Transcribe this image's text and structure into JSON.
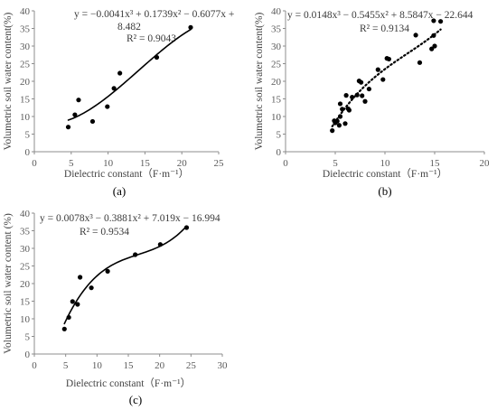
{
  "chart_data": [
    {
      "type": "scatter",
      "panel_label": "(a)",
      "xlabel": "Dielectric constant（F·m⁻¹）",
      "ylabel": "Volumetric soil water content(%)",
      "xlim": [
        0,
        25
      ],
      "ylim": [
        0,
        40
      ],
      "xticks": [
        0,
        5,
        10,
        15,
        20,
        25
      ],
      "yticks": [
        0,
        5,
        10,
        15,
        20,
        25,
        30,
        35,
        40
      ],
      "points": [
        [
          4.6,
          7.0
        ],
        [
          5.5,
          10.5
        ],
        [
          6.0,
          14.7
        ],
        [
          7.9,
          8.6
        ],
        [
          9.9,
          12.8
        ],
        [
          10.8,
          18.0
        ],
        [
          11.6,
          22.3
        ],
        [
          16.6,
          26.8
        ],
        [
          21.2,
          35.3
        ]
      ],
      "trendline": {
        "style": "solid",
        "coefficients": [
          -0.0041,
          0.1739,
          -0.6077,
          8.482
        ],
        "x_range": [
          4.6,
          21.2
        ]
      },
      "equation_line1": "y = −0.0041x³ + 0.1739x² − 0.6077x +",
      "equation_line2": "8.482",
      "r2_text": "R² = 0.9043",
      "grid": false
    },
    {
      "type": "scatter",
      "panel_label": "(b)",
      "xlabel": "Dielectric constant（F·m⁻¹）",
      "ylabel": "Volumetric soil water content(%)",
      "xlim": [
        0,
        20
      ],
      "ylim": [
        0,
        40
      ],
      "xticks": [
        0,
        5,
        10,
        15,
        20
      ],
      "yticks": [
        0,
        5,
        10,
        15,
        20,
        25,
        30,
        35,
        40
      ],
      "points": [
        [
          4.7,
          6.0
        ],
        [
          4.9,
          8.8
        ],
        [
          5.0,
          8.2
        ],
        [
          5.2,
          8.7
        ],
        [
          5.4,
          7.5
        ],
        [
          5.5,
          10.0
        ],
        [
          5.5,
          13.6
        ],
        [
          5.7,
          12.1
        ],
        [
          6.0,
          8.0
        ],
        [
          6.1,
          16.0
        ],
        [
          6.3,
          12.2
        ],
        [
          6.4,
          11.8
        ],
        [
          6.7,
          15.5
        ],
        [
          7.2,
          16.1
        ],
        [
          7.4,
          20.1
        ],
        [
          7.6,
          19.7
        ],
        [
          7.7,
          15.9
        ],
        [
          8.0,
          14.3
        ],
        [
          8.4,
          17.8
        ],
        [
          9.3,
          23.3
        ],
        [
          9.8,
          20.5
        ],
        [
          10.2,
          26.5
        ],
        [
          10.4,
          26.3
        ],
        [
          13.1,
          33.1
        ],
        [
          13.5,
          25.3
        ],
        [
          14.7,
          29.2
        ],
        [
          14.9,
          37.2
        ],
        [
          14.9,
          33.0
        ],
        [
          15.0,
          30.0
        ],
        [
          15.6,
          37.0
        ]
      ],
      "trendline": {
        "style": "dotted",
        "coefficients": [
          0.0148,
          -0.5455,
          8.5847,
          -22.644
        ],
        "x_range": [
          4.7,
          15.6
        ]
      },
      "equation_line1": "y = 0.0148x³ − 0.5455x² + 8.5847x − 22.644",
      "r2_text": "R² = 0.9134",
      "grid": false
    },
    {
      "type": "scatter",
      "panel_label": "(c)",
      "xlabel": "Dielectric constant（F·m⁻¹）",
      "ylabel": "Volumetric soil water content (%)",
      "xlim": [
        0,
        30
      ],
      "ylim": [
        0,
        40
      ],
      "xticks": [
        0,
        5,
        10,
        15,
        20,
        25,
        30
      ],
      "yticks": [
        0,
        5,
        10,
        15,
        20,
        25,
        30,
        35,
        40
      ],
      "points": [
        [
          4.8,
          7.1
        ],
        [
          5.5,
          10.4
        ],
        [
          6.1,
          14.9
        ],
        [
          6.9,
          14.1
        ],
        [
          7.3,
          21.8
        ],
        [
          9.1,
          18.8
        ],
        [
          11.7,
          23.5
        ],
        [
          16.1,
          28.2
        ],
        [
          20.1,
          31.1
        ],
        [
          24.3,
          35.9
        ]
      ],
      "trendline": {
        "style": "solid",
        "coefficients": [
          0.0078,
          -0.3881,
          7.019,
          -16.994
        ],
        "x_range": [
          4.8,
          24.3
        ]
      },
      "equation_line1": "y = 0.0078x³ − 0.3881x² + 7.019x − 16.994",
      "r2_text": "R² = 0.9534",
      "grid": false
    }
  ]
}
